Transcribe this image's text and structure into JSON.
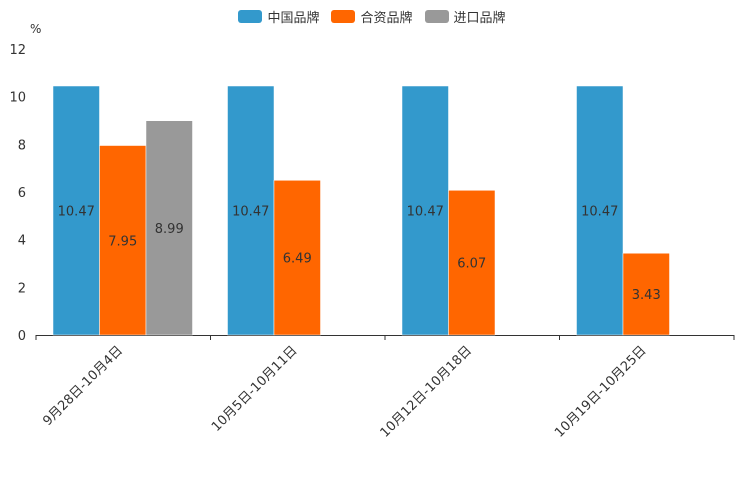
{
  "chart_data": {
    "type": "bar",
    "unit": "%",
    "categories": [
      "9月28日-10月4日",
      "10月5日-10月11日",
      "10月12日-10月18日",
      "10月19日-10月25日"
    ],
    "series": [
      {
        "name": "中国品牌",
        "color": "#3399CC",
        "values": [
          10.47,
          10.47,
          10.47,
          10.47
        ]
      },
      {
        "name": "合资品牌",
        "color": "#FF6600",
        "values": [
          7.95,
          6.49,
          6.07,
          3.43
        ]
      },
      {
        "name": "进口品牌",
        "color": "#999999",
        "values": [
          8.99,
          null,
          null,
          null
        ]
      }
    ],
    "ylim": [
      0,
      12
    ],
    "yticks": [
      0,
      2,
      4,
      6,
      8,
      10,
      12
    ],
    "legend_position": "top-center",
    "grid": false
  }
}
